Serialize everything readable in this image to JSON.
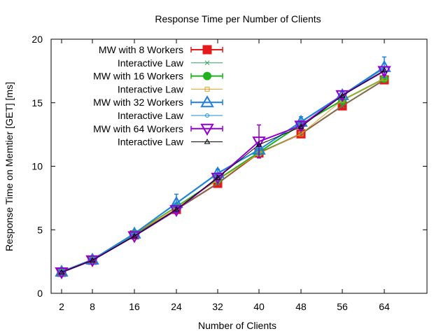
{
  "chart_data": {
    "type": "line",
    "title": "Response Time per Number of Clients",
    "xlabel": "Number of Clients",
    "ylabel": "Response Time on Memtier [GET] [ms]",
    "x": [
      2,
      8,
      16,
      24,
      32,
      40,
      48,
      56,
      64
    ],
    "x_ticks": [
      "2",
      "8",
      "16",
      "24",
      "32",
      "40",
      "48",
      "56",
      "64"
    ],
    "y_ticks": [
      "0",
      "5",
      "10",
      "15",
      "20"
    ],
    "ylim": [
      0,
      20
    ],
    "grid": false,
    "legend_position": "top-left",
    "series": [
      {
        "name": "MW with 8 Workers",
        "color": "#e41a1c",
        "marker": "filled-square",
        "errorbars": true,
        "values": [
          1.65,
          2.6,
          4.6,
          6.6,
          8.65,
          11.05,
          12.55,
          14.75,
          16.8
        ],
        "errors": [
          0.1,
          0.1,
          0.15,
          0.2,
          0.2,
          0.3,
          0.2,
          0.2,
          0.2
        ]
      },
      {
        "name": "Interactive Law",
        "color": "#2ca25f",
        "marker": "cross",
        "values": [
          1.65,
          2.6,
          4.6,
          6.6,
          8.65,
          11.1,
          12.55,
          14.75,
          16.8
        ]
      },
      {
        "name": "MW with 16 Workers",
        "color": "#21b121",
        "marker": "filled-circle",
        "errorbars": true,
        "values": [
          1.7,
          2.65,
          4.7,
          6.8,
          8.95,
          11.1,
          13.3,
          15.2,
          16.9
        ],
        "errors": [
          0.1,
          0.1,
          0.1,
          0.2,
          0.3,
          0.3,
          0.3,
          0.3,
          0.2
        ]
      },
      {
        "name": "Interactive Law",
        "color": "#e0a020",
        "marker": "open-square",
        "values": [
          1.7,
          2.65,
          4.7,
          6.75,
          8.9,
          11.0,
          12.55,
          15.2,
          16.9
        ]
      },
      {
        "name": "MW with 32 Workers",
        "color": "#1f7fdc",
        "marker": "open-triangle",
        "errorbars": true,
        "values": [
          1.7,
          2.65,
          4.7,
          7.1,
          9.45,
          11.3,
          13.5,
          15.6,
          17.8
        ],
        "errors": [
          0.1,
          0.1,
          0.1,
          0.7,
          0.3,
          0.3,
          0.4,
          0.3,
          0.8
        ]
      },
      {
        "name": "Interactive Law",
        "color": "#1f8fd0",
        "marker": "small-circle",
        "values": [
          1.7,
          2.65,
          4.7,
          7.05,
          9.4,
          11.3,
          13.45,
          15.55,
          17.7
        ]
      },
      {
        "name": "MW with 64 Workers",
        "color": "#9400d3",
        "marker": "open-inverted-triangle",
        "errorbars": true,
        "values": [
          1.65,
          2.6,
          4.5,
          6.55,
          9.1,
          11.95,
          13.2,
          15.6,
          17.5
        ],
        "errors": [
          0.1,
          0.1,
          0.1,
          0.2,
          0.2,
          1.3,
          0.3,
          0.3,
          0.3
        ]
      },
      {
        "name": "Interactive Law",
        "color": "#000000",
        "marker": "small-triangle",
        "values": [
          1.65,
          2.6,
          4.5,
          6.6,
          9.1,
          11.7,
          13.1,
          15.55,
          17.55
        ]
      }
    ]
  }
}
